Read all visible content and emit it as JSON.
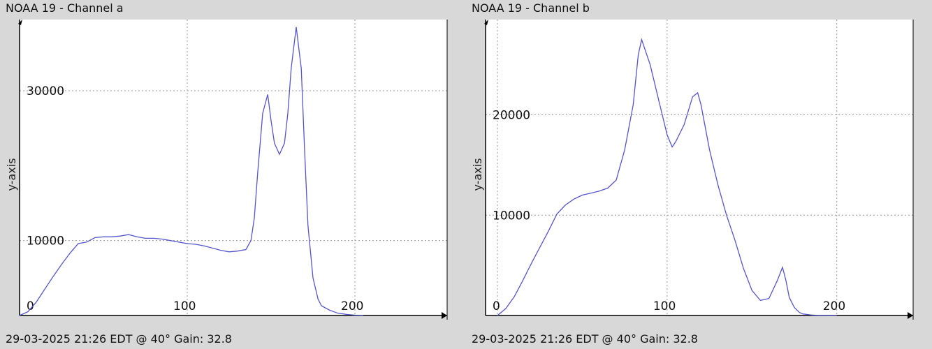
{
  "panels": [
    {
      "title": "NOAA 19 - Channel a",
      "footer": "29-03-2025 21:26 EDT @ 40° Gain: 32.8"
    },
    {
      "title": "NOAA 19 - Channel b",
      "footer": "29-03-2025 21:26 EDT @ 40° Gain: 32.8"
    }
  ],
  "colors": {
    "background": "#d8d8d8",
    "plot_background": "#ffffff",
    "line": "#5555cc",
    "grid": "#999999",
    "axis": "#000000"
  },
  "chart_data": [
    {
      "type": "line",
      "title": "NOAA 19 - Channel a",
      "xlabel": "",
      "ylabel": "y-axis",
      "grid": true,
      "xlim": [
        0,
        255
      ],
      "ylim": [
        0,
        39500
      ],
      "x_ticks": [
        0,
        100,
        200
      ],
      "y_ticks": [
        10000,
        30000
      ],
      "x_tick_labels": [
        "0",
        "100",
        "200"
      ],
      "y_tick_labels": [
        "10000",
        "30000"
      ],
      "series": [
        {
          "x": [
            0,
            5,
            10,
            15,
            20,
            25,
            30,
            35,
            40,
            45,
            50,
            55,
            60,
            65,
            70,
            75,
            80,
            85,
            90,
            95,
            100,
            105,
            110,
            115,
            120,
            125,
            130,
            135,
            138,
            140,
            142,
            145,
            148,
            150,
            152,
            155,
            158,
            160,
            162,
            165,
            168,
            170,
            172,
            175,
            178,
            180,
            185,
            190,
            195,
            200,
            205
          ],
          "y": [
            0,
            500,
            1800,
            3500,
            5200,
            6800,
            8300,
            9600,
            9800,
            10400,
            10500,
            10500,
            10600,
            10800,
            10500,
            10300,
            10300,
            10200,
            10000,
            9800,
            9600,
            9500,
            9300,
            9000,
            8700,
            8500,
            8600,
            8800,
            10000,
            13000,
            19000,
            27000,
            29500,
            26000,
            23000,
            21500,
            23000,
            27000,
            33000,
            38500,
            33000,
            22000,
            12000,
            5000,
            2200,
            1300,
            700,
            300,
            150,
            50,
            0
          ]
        }
      ]
    },
    {
      "type": "line",
      "title": "NOAA 19 - Channel b",
      "xlabel": "",
      "ylabel": "y-axis",
      "grid": true,
      "xlim": [
        -7,
        245
      ],
      "ylim": [
        0,
        29500
      ],
      "x_ticks": [
        0,
        100,
        200
      ],
      "y_ticks": [
        10000,
        20000
      ],
      "x_tick_labels": [
        "0",
        "100",
        "200"
      ],
      "y_tick_labels": [
        "10000",
        "20000"
      ],
      "series": [
        {
          "x": [
            0,
            5,
            10,
            15,
            20,
            25,
            30,
            35,
            40,
            45,
            50,
            55,
            60,
            65,
            70,
            75,
            80,
            83,
            85,
            88,
            90,
            95,
            100,
            103,
            105,
            110,
            115,
            118,
            120,
            125,
            130,
            135,
            140,
            145,
            150,
            155,
            160,
            165,
            168,
            170,
            172,
            175,
            178,
            180,
            185,
            190,
            195,
            200
          ],
          "y": [
            0,
            700,
            1900,
            3500,
            5200,
            6800,
            8400,
            10100,
            11000,
            11600,
            12000,
            12200,
            12400,
            12700,
            13500,
            16500,
            21000,
            26000,
            27500,
            26000,
            25000,
            21500,
            18000,
            16800,
            17300,
            19000,
            21800,
            22200,
            21000,
            16500,
            13000,
            10000,
            7500,
            4700,
            2500,
            1500,
            1700,
            3500,
            4800,
            3500,
            1800,
            800,
            300,
            150,
            50,
            0,
            0,
            0
          ]
        }
      ]
    }
  ]
}
